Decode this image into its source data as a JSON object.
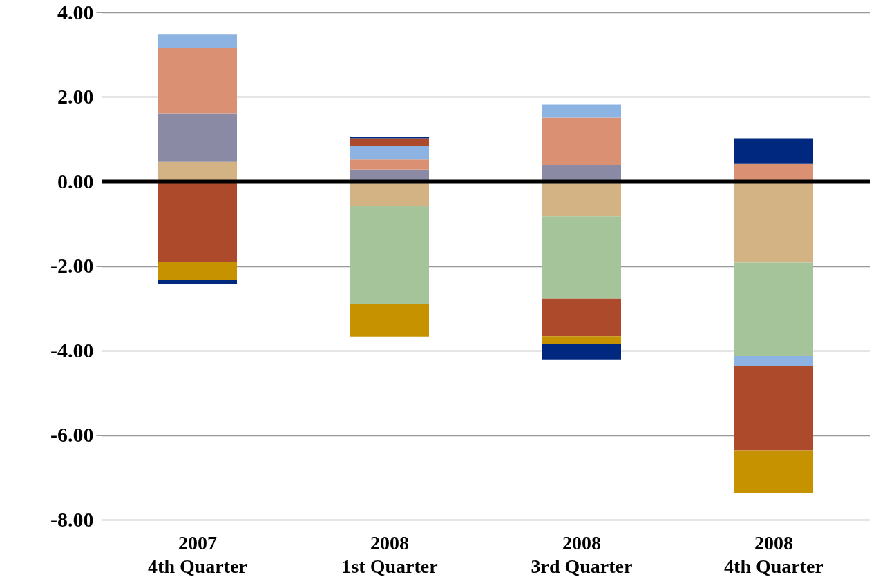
{
  "chart_data": {
    "type": "bar",
    "stacked": true,
    "categories": [
      "2007\n4th Quarter",
      "2008\n1st Quarter",
      "2008\n3rd Quarter",
      "2008\n4th Quarter"
    ],
    "series": [
      {
        "color": "#d3b384",
        "values": [
          0.46,
          -0.57,
          -0.82,
          -1.92
        ]
      },
      {
        "color": "#a5c49a",
        "values": [
          null,
          -2.32,
          -1.95,
          -2.21
        ]
      },
      {
        "color": "#8b8aa5",
        "values": [
          1.15,
          0.28,
          0.39,
          null
        ]
      },
      {
        "color": "#d99073",
        "values": [
          1.54,
          0.24,
          1.12,
          0.43
        ]
      },
      {
        "color": "#8db3e2",
        "values": [
          0.34,
          0.33,
          0.31,
          -0.23
        ]
      },
      {
        "color": "#ad4a2c",
        "values": [
          -1.9,
          0.17,
          -0.89,
          -2.0
        ]
      },
      {
        "color": "#c79200",
        "values": [
          -0.43,
          -0.78,
          -0.18,
          -1.02
        ]
      },
      {
        "color": "#00287f",
        "values": [
          -0.1,
          0.03,
          -0.37,
          0.59
        ]
      }
    ],
    "ylim": [
      -8,
      4
    ],
    "yticks": [
      {
        "value": 4,
        "label": "4.00"
      },
      {
        "value": 2,
        "label": "2.00"
      },
      {
        "value": 0,
        "label": "0.00"
      },
      {
        "value": -2,
        "label": "-2.00"
      },
      {
        "value": -4,
        "label": "-4.00"
      },
      {
        "value": -6,
        "label": "-6.00"
      },
      {
        "value": -8,
        "label": "-8.00"
      }
    ],
    "grid": "y"
  }
}
